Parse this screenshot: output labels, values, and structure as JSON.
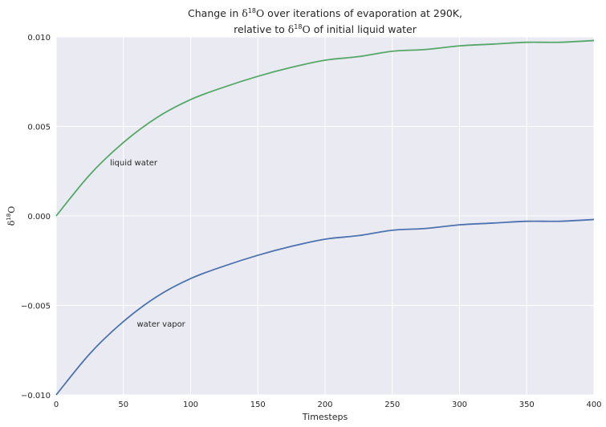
{
  "chart_data": {
    "type": "line",
    "title": {
      "line1_prefix": "Change in ",
      "line1_suffix": " over iterations of evaporation at 290K,",
      "line2_prefix": "relative to ",
      "line2_suffix": " of initial liquid water",
      "symbol_delta": "δ",
      "symbol_sup": "18",
      "symbol_element": "O"
    },
    "xlabel": "Timesteps",
    "ylabel": {
      "delta": "δ",
      "sup": "18",
      "element": "O"
    },
    "xlim": [
      0,
      400
    ],
    "ylim": [
      -0.01,
      0.01
    ],
    "xticks": [
      0,
      50,
      100,
      150,
      200,
      250,
      300,
      350,
      400
    ],
    "yticks": [
      -0.01,
      -0.005,
      0.0,
      0.005,
      0.01
    ],
    "ytick_labels": [
      "−0.010",
      "−0.005",
      "0.000",
      "0.005",
      "0.010"
    ],
    "grid": true,
    "background": "#EAEAF2",
    "series": [
      {
        "color": "#55A868",
        "x": [
          0,
          25,
          50,
          75,
          100,
          125,
          150,
          175,
          200,
          225,
          250,
          275,
          300,
          325,
          350,
          375,
          400
        ],
        "values": [
          0.0,
          0.0023,
          0.0041,
          0.0055,
          0.0065,
          0.0072,
          0.0078,
          0.0083,
          0.0087,
          0.0089,
          0.0092,
          0.0093,
          0.0095,
          0.0096,
          0.0097,
          0.0097,
          0.0098
        ]
      },
      {
        "color": "#4C72B0",
        "x": [
          0,
          25,
          50,
          75,
          100,
          125,
          150,
          175,
          200,
          225,
          250,
          275,
          300,
          325,
          350,
          375,
          400
        ],
        "values": [
          -0.01,
          -0.0077,
          -0.0059,
          -0.0045,
          -0.0035,
          -0.0028,
          -0.0022,
          -0.0017,
          -0.0013,
          -0.0011,
          -0.0008,
          -0.0007,
          -0.0005,
          -0.0004,
          -0.0003,
          -0.0003,
          -0.0002
        ]
      }
    ],
    "annotations": [
      {
        "text": "liquid water",
        "x": 40,
        "y": 0.003
      },
      {
        "text": "water vapor",
        "x": 60,
        "y": -0.006
      }
    ]
  }
}
